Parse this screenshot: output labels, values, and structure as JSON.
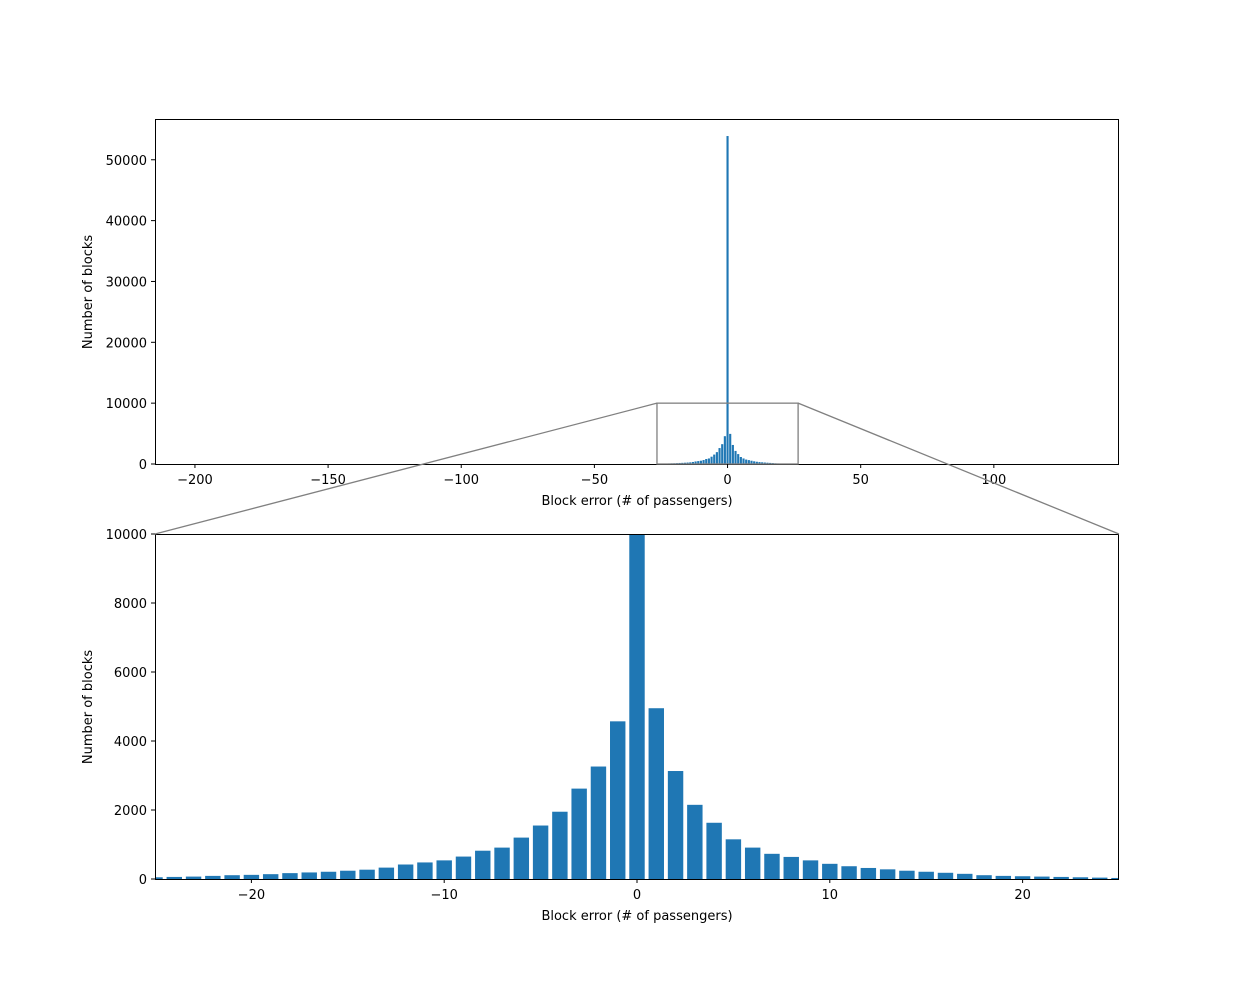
{
  "chart_data": [
    {
      "type": "bar",
      "title": "",
      "xlabel": "Block error (# of passengers)",
      "ylabel": "Number of blocks",
      "xlim": [
        -215,
        147
      ],
      "ylim": [
        0,
        56700
      ],
      "xticks": [
        -200,
        -150,
        -100,
        -50,
        0,
        50,
        100
      ],
      "xtick_labels": [
        "−200",
        "−150",
        "−100",
        "−50",
        "0",
        "50",
        "100"
      ],
      "yticks": [
        0,
        10000,
        20000,
        30000,
        40000,
        50000
      ],
      "ytick_labels": [
        "0",
        "10000",
        "20000",
        "30000",
        "40000",
        "50000"
      ],
      "grid": false,
      "color": "#1f77b4",
      "zoom_box": {
        "x": [
          -26.5,
          26.5
        ],
        "y": [
          0,
          10000
        ]
      }
    },
    {
      "type": "bar",
      "title": "",
      "xlabel": "Block error (# of passengers)",
      "ylabel": "Number of blocks",
      "xlim": [
        -25,
        25
      ],
      "ylim": [
        0,
        10000
      ],
      "xticks": [
        -20,
        -10,
        0,
        10,
        20
      ],
      "xtick_labels": [
        "−20",
        "−10",
        "0",
        "10",
        "20"
      ],
      "yticks": [
        0,
        2000,
        4000,
        6000,
        8000,
        10000
      ],
      "ytick_labels": [
        "0",
        "2000",
        "4000",
        "6000",
        "8000",
        "10000"
      ],
      "grid": false,
      "color": "#1f77b4"
    }
  ],
  "histogram": {
    "x": [
      -25,
      -24,
      -23,
      -22,
      -21,
      -20,
      -19,
      -18,
      -17,
      -16,
      -15,
      -14,
      -13,
      -12,
      -11,
      -10,
      -9,
      -8,
      -7,
      -6,
      -5,
      -4,
      -3,
      -2,
      -1,
      0,
      1,
      2,
      3,
      4,
      5,
      6,
      7,
      8,
      9,
      10,
      11,
      12,
      13,
      14,
      15,
      16,
      17,
      18,
      19,
      20,
      21,
      22,
      23,
      24,
      25
    ],
    "values": [
      50,
      60,
      70,
      90,
      110,
      120,
      140,
      170,
      190,
      210,
      240,
      270,
      330,
      420,
      480,
      540,
      650,
      820,
      910,
      1200,
      1550,
      1950,
      2620,
      3260,
      4570,
      53900,
      4950,
      3130,
      2150,
      1630,
      1150,
      910,
      730,
      640,
      540,
      440,
      370,
      320,
      280,
      240,
      210,
      180,
      150,
      110,
      90,
      80,
      70,
      60,
      50,
      40,
      30
    ]
  }
}
